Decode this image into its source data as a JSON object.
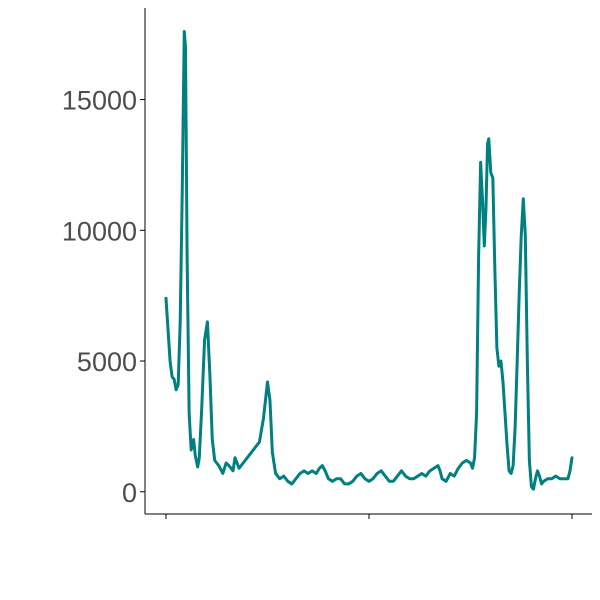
{
  "chart_data": {
    "type": "line",
    "title": "",
    "xlabel": "",
    "ylabel": "",
    "xlim": [
      0,
      100
    ],
    "ylim": [
      -850,
      18500
    ],
    "grid": false,
    "legend": "none",
    "y_ticks": [
      0,
      5000,
      10000,
      15000
    ],
    "y_tick_labels": [
      "0",
      "5000",
      "10000",
      "15000"
    ],
    "x_ticks": [
      0,
      50,
      100
    ],
    "x_tick_labels": [
      "",
      "",
      ""
    ],
    "color": "#008080",
    "series": [
      {
        "values": [
          [
            0.0,
            7400
          ],
          [
            0.5,
            6200
          ],
          [
            1.0,
            5000
          ],
          [
            1.5,
            4400
          ],
          [
            2.0,
            4300
          ],
          [
            2.5,
            3900
          ],
          [
            3.0,
            4100
          ],
          [
            3.5,
            6500
          ],
          [
            4.0,
            11500
          ],
          [
            4.5,
            17600
          ],
          [
            4.8,
            17000
          ],
          [
            5.2,
            9000
          ],
          [
            5.7,
            3000
          ],
          [
            6.2,
            1600
          ],
          [
            6.8,
            2000
          ],
          [
            7.2,
            1400
          ],
          [
            7.8,
            950
          ],
          [
            8.2,
            1300
          ],
          [
            8.8,
            3200
          ],
          [
            9.5,
            5800
          ],
          [
            10.2,
            6500
          ],
          [
            10.8,
            4500
          ],
          [
            11.4,
            2000
          ],
          [
            12.0,
            1200
          ],
          [
            13.0,
            1000
          ],
          [
            14.0,
            700
          ],
          [
            14.8,
            1100
          ],
          [
            15.5,
            1000
          ],
          [
            16.5,
            800
          ],
          [
            17.0,
            1300
          ],
          [
            18.0,
            900
          ],
          [
            19.0,
            1100
          ],
          [
            20.0,
            1300
          ],
          [
            21.0,
            1500
          ],
          [
            22.0,
            1700
          ],
          [
            23.0,
            1900
          ],
          [
            24.0,
            2800
          ],
          [
            25.0,
            4200
          ],
          [
            25.6,
            3500
          ],
          [
            26.2,
            1500
          ],
          [
            27.0,
            700
          ],
          [
            28.0,
            500
          ],
          [
            29.0,
            600
          ],
          [
            30.0,
            400
          ],
          [
            31.0,
            300
          ],
          [
            32.0,
            500
          ],
          [
            33.0,
            700
          ],
          [
            34.0,
            800
          ],
          [
            35.0,
            700
          ],
          [
            36.0,
            800
          ],
          [
            37.0,
            700
          ],
          [
            37.8,
            900
          ],
          [
            38.5,
            1000
          ],
          [
            39.2,
            800
          ],
          [
            40.0,
            500
          ],
          [
            41.0,
            400
          ],
          [
            42.0,
            500
          ],
          [
            43.0,
            500
          ],
          [
            44.0,
            300
          ],
          [
            45.0,
            300
          ],
          [
            46.0,
            400
          ],
          [
            47.0,
            600
          ],
          [
            48.0,
            700
          ],
          [
            49.0,
            500
          ],
          [
            50.0,
            400
          ],
          [
            51.0,
            500
          ],
          [
            52.0,
            700
          ],
          [
            53.0,
            800
          ],
          [
            54.0,
            600
          ],
          [
            55.0,
            400
          ],
          [
            56.0,
            400
          ],
          [
            57.0,
            600
          ],
          [
            58.0,
            800
          ],
          [
            59.0,
            600
          ],
          [
            60.0,
            500
          ],
          [
            61.0,
            500
          ],
          [
            62.0,
            600
          ],
          [
            63.0,
            700
          ],
          [
            64.0,
            600
          ],
          [
            65.0,
            800
          ],
          [
            66.0,
            900
          ],
          [
            67.0,
            1000
          ],
          [
            67.5,
            800
          ],
          [
            68.0,
            500
          ],
          [
            69.0,
            400
          ],
          [
            70.0,
            700
          ],
          [
            71.0,
            600
          ],
          [
            72.0,
            900
          ],
          [
            73.0,
            1100
          ],
          [
            74.0,
            1200
          ],
          [
            75.0,
            1100
          ],
          [
            75.5,
            900
          ],
          [
            76.0,
            1300
          ],
          [
            76.5,
            3000
          ],
          [
            77.0,
            9000
          ],
          [
            77.5,
            12600
          ],
          [
            78.0,
            11000
          ],
          [
            78.4,
            9400
          ],
          [
            78.8,
            10800
          ],
          [
            79.2,
            13300
          ],
          [
            79.5,
            13500
          ],
          [
            80.0,
            12200
          ],
          [
            80.5,
            12000
          ],
          [
            81.0,
            8500
          ],
          [
            81.5,
            5500
          ],
          [
            82.0,
            4800
          ],
          [
            82.5,
            5000
          ],
          [
            83.0,
            4200
          ],
          [
            83.5,
            3000
          ],
          [
            84.0,
            1800
          ],
          [
            84.5,
            800
          ],
          [
            85.0,
            700
          ],
          [
            85.5,
            1000
          ],
          [
            86.0,
            2500
          ],
          [
            86.5,
            5000
          ],
          [
            87.0,
            7600
          ],
          [
            87.5,
            9800
          ],
          [
            88.0,
            11200
          ],
          [
            88.5,
            9800
          ],
          [
            89.0,
            5000
          ],
          [
            89.5,
            1200
          ],
          [
            90.0,
            200
          ],
          [
            90.5,
            100
          ],
          [
            91.0,
            500
          ],
          [
            91.5,
            800
          ],
          [
            92.0,
            600
          ],
          [
            92.5,
            300
          ],
          [
            93.0,
            400
          ],
          [
            94.0,
            500
          ],
          [
            95.0,
            500
          ],
          [
            96.0,
            600
          ],
          [
            97.0,
            500
          ],
          [
            98.0,
            500
          ],
          [
            99.0,
            500
          ],
          [
            99.5,
            800
          ],
          [
            100.0,
            1300
          ]
        ]
      }
    ]
  }
}
